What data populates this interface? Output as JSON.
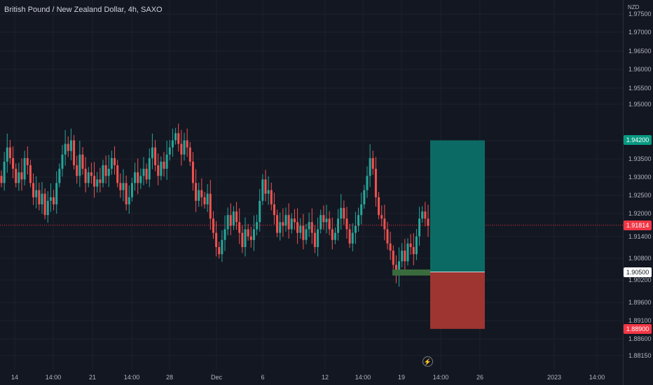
{
  "chart_data": {
    "type": "candlestick",
    "title": "British Pound / New Zealand Dollar, 4h, SAXO",
    "currency": "NZD",
    "colors": {
      "up": "#26a69a",
      "down": "#ef5350",
      "background": "#131722",
      "grid": "#1e222d"
    },
    "ylim": [
      1.8815,
      1.9775
    ],
    "y_ticks": [
      "1.97500",
      "1.97000",
      "1.96500",
      "1.96000",
      "1.95500",
      "1.95000",
      "1.94000",
      "1.93500",
      "1.93000",
      "1.92500",
      "1.92000",
      "1.91400",
      "1.90800",
      "1.90200",
      "1.89600",
      "1.89100",
      "1.88600",
      "1.88150"
    ],
    "x_ticks": [
      "14",
      "14:00",
      "21",
      "14:00",
      "28",
      "Dec",
      "6",
      "12",
      "14:00",
      "19",
      "14:00",
      "26",
      "2023",
      "14:00"
    ],
    "price_labels": {
      "current": "1.91814",
      "take_profit": "1.94200",
      "entry": "1.90500",
      "stop_loss": "1.88900"
    },
    "position": {
      "entry": 1.905,
      "take_profit": 1.942,
      "stop_loss": 1.889
    },
    "entry_zone": {
      "low": 1.904,
      "high": 1.9057
    },
    "candles_closes": [
      1.93,
      1.936,
      1.94,
      1.937,
      1.934,
      1.93,
      1.933,
      1.931,
      1.937,
      1.935,
      1.93,
      1.926,
      1.928,
      1.924,
      1.927,
      1.921,
      1.925,
      1.926,
      1.924,
      1.93,
      1.934,
      1.938,
      1.941,
      1.939,
      1.942,
      1.935,
      1.932,
      1.938,
      1.934,
      1.93,
      1.933,
      1.932,
      1.929,
      1.931,
      1.93,
      1.935,
      1.932,
      1.934,
      1.937,
      1.935,
      1.93,
      1.928,
      1.93,
      1.924,
      1.926,
      1.93,
      1.933,
      1.93,
      1.932,
      1.934,
      1.931,
      1.937,
      1.94,
      1.935,
      1.932,
      1.936,
      1.934,
      1.938,
      1.94,
      1.942,
      1.944,
      1.941,
      1.938,
      1.942,
      1.94,
      1.936,
      1.93,
      1.925,
      1.928,
      1.926,
      1.924,
      1.927,
      1.92,
      1.916,
      1.912,
      1.91,
      1.914,
      1.917,
      1.921,
      1.918,
      1.922,
      1.919,
      1.916,
      1.912,
      1.917,
      1.915,
      1.914,
      1.917,
      1.919,
      1.925,
      1.931,
      1.927,
      1.928,
      1.924,
      1.921,
      1.916,
      1.919,
      1.918,
      1.921,
      1.917,
      1.92,
      1.919,
      1.916,
      1.918,
      1.914,
      1.917,
      1.919,
      1.916,
      1.912,
      1.917,
      1.921,
      1.919,
      1.92,
      1.917,
      1.914,
      1.916,
      1.92,
      1.923,
      1.92,
      1.917,
      1.913,
      1.916,
      1.918,
      1.921,
      1.924,
      1.928,
      1.932,
      1.937,
      1.934,
      1.926,
      1.921,
      1.92,
      1.917,
      1.913,
      1.911,
      1.907,
      1.904,
      1.908,
      1.911,
      1.908,
      1.913,
      1.912,
      1.91,
      1.915,
      1.92,
      1.922,
      1.92,
      1.918
    ]
  }
}
